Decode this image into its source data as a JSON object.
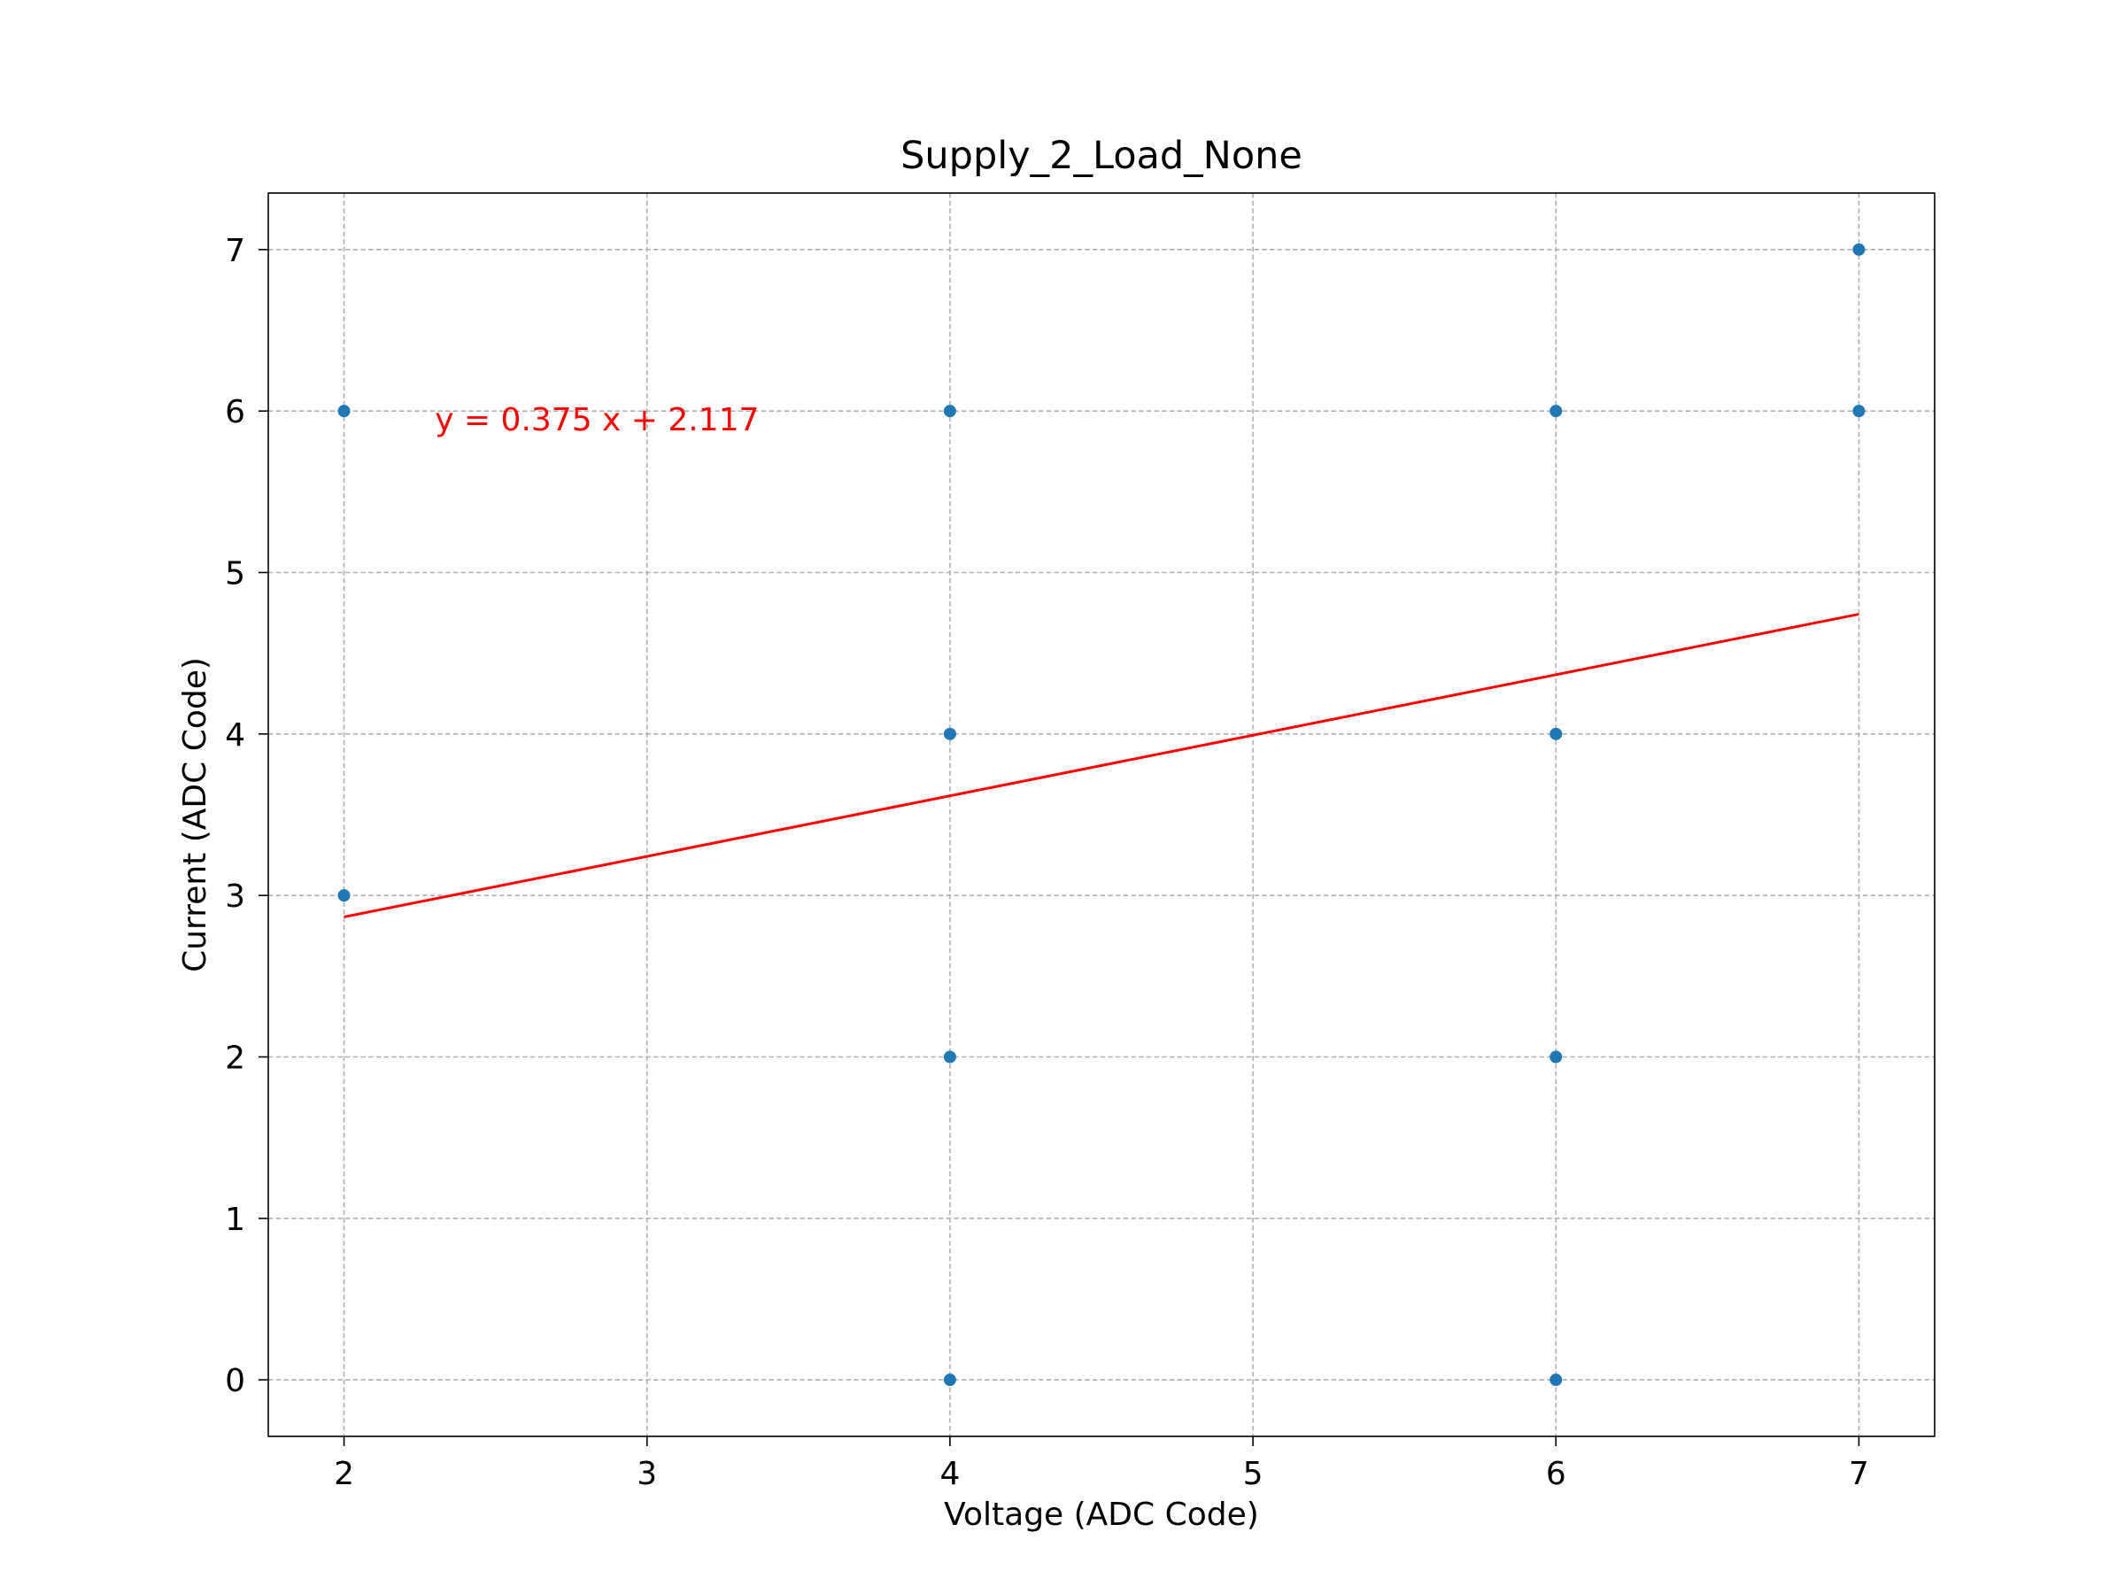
{
  "chart_data": {
    "type": "scatter",
    "title": "Supply_2_Load_None",
    "xlabel": "Voltage (ADC Code)",
    "ylabel": "Current (ADC Code)",
    "xlim": [
      1.75,
      7.25
    ],
    "ylim": [
      -0.35,
      7.35
    ],
    "xticks": [
      2,
      3,
      4,
      5,
      6,
      7
    ],
    "yticks": [
      0,
      1,
      2,
      3,
      4,
      5,
      6,
      7
    ],
    "grid": true,
    "points": [
      {
        "x": 2,
        "y": 6
      },
      {
        "x": 2,
        "y": 3
      },
      {
        "x": 4,
        "y": 6
      },
      {
        "x": 4,
        "y": 4
      },
      {
        "x": 4,
        "y": 2
      },
      {
        "x": 4,
        "y": 0
      },
      {
        "x": 6,
        "y": 6
      },
      {
        "x": 6,
        "y": 4
      },
      {
        "x": 6,
        "y": 2
      },
      {
        "x": 6,
        "y": 0
      },
      {
        "x": 7,
        "y": 7
      },
      {
        "x": 7,
        "y": 6
      }
    ],
    "fit": {
      "slope": 0.375,
      "intercept": 2.117,
      "x_range": [
        2,
        7
      ]
    },
    "annotation": {
      "text": "y = 0.375 x + 2.117",
      "x": 2.3,
      "y": 5.88
    },
    "colors": {
      "points": "#1f77b4",
      "fit_line": "#ff0000",
      "annotation": "#ff0000"
    }
  }
}
